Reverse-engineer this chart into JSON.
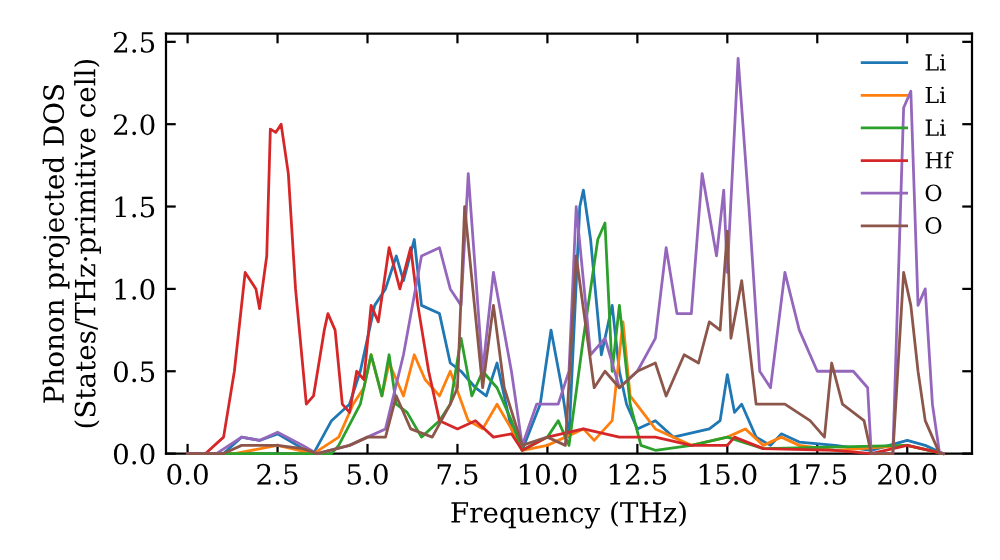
{
  "chart_data": {
    "type": "line",
    "xlabel": "Frequency (THz)",
    "ylabel": "Phonon projected DOS\n(States/THz·primitive cell)",
    "xlim": [
      -0.6,
      21.8
    ],
    "ylim": [
      0,
      2.55
    ],
    "xticks": [
      {
        "value": 0,
        "label": "0.0"
      },
      {
        "value": 2.5,
        "label": "2.5"
      },
      {
        "value": 5,
        "label": "5.0"
      },
      {
        "value": 7.5,
        "label": "7.5"
      },
      {
        "value": 10,
        "label": "10.0"
      },
      {
        "value": 12.5,
        "label": "12.5"
      },
      {
        "value": 15,
        "label": "15.0"
      },
      {
        "value": 17.5,
        "label": "17.5"
      },
      {
        "value": 20,
        "label": "20.0"
      }
    ],
    "yticks": [
      {
        "value": 0,
        "label": "0.0"
      },
      {
        "value": 0.5,
        "label": "0.5"
      },
      {
        "value": 1,
        "label": "1.0"
      },
      {
        "value": 1.5,
        "label": "1.5"
      },
      {
        "value": 2,
        "label": "2.0"
      },
      {
        "value": 2.5,
        "label": "2.5"
      }
    ],
    "grid": false,
    "legend": "top right",
    "marker": "none",
    "line_style": "solid",
    "series": [
      {
        "name": "Li",
        "color": "#1f77b4",
        "x": [
          0,
          1,
          1.5,
          2,
          2.5,
          3.2,
          3.5,
          4,
          4.5,
          4.8,
          5.2,
          5.5,
          5.8,
          6,
          6.3,
          6.5,
          7,
          7.3,
          7.6,
          8,
          8.3,
          8.6,
          9,
          9.3,
          9.8,
          10.1,
          10.4,
          10.6,
          10.9,
          11,
          11.2,
          11.5,
          11.8,
          12,
          12.2,
          12.5,
          13,
          13.5,
          14.5,
          14.8,
          15,
          15.2,
          15.4,
          15.8,
          16.2,
          16.5,
          17,
          18,
          19,
          20,
          20.5,
          21
        ],
        "values": [
          0,
          0,
          0.1,
          0.08,
          0.12,
          0.03,
          0,
          0.2,
          0.3,
          0.5,
          0.9,
          1.0,
          1.2,
          1.05,
          1.3,
          0.9,
          0.85,
          0.55,
          0.5,
          0.4,
          0.35,
          0.55,
          0.15,
          0.02,
          0.3,
          0.75,
          0.4,
          0.1,
          1.5,
          1.6,
          1.3,
          0.6,
          0.9,
          0.5,
          0.3,
          0.15,
          0.2,
          0.1,
          0.15,
          0.2,
          0.48,
          0.25,
          0.3,
          0.1,
          0.05,
          0.12,
          0.07,
          0.05,
          0.02,
          0.08,
          0.05,
          0
        ]
      },
      {
        "name": "Li",
        "color": "#ff7f0e",
        "x": [
          0,
          1.3,
          2.5,
          3.5,
          4.2,
          4.6,
          4.9,
          5.1,
          5.4,
          5.6,
          6,
          6.3,
          6.6,
          7,
          7.3,
          7.8,
          8.2,
          8.6,
          9,
          9.3,
          10,
          10.5,
          11,
          11.3,
          11.8,
          12.1,
          12.3,
          13,
          14,
          15,
          15.5,
          16,
          16.5,
          17,
          18,
          20,
          21
        ],
        "values": [
          0,
          0,
          0.05,
          0,
          0.1,
          0.3,
          0.4,
          0.6,
          0.35,
          0.55,
          0.35,
          0.6,
          0.45,
          0.35,
          0.5,
          0.2,
          0.15,
          0.3,
          0.15,
          0.02,
          0.05,
          0.1,
          0.15,
          0.08,
          0.2,
          0.8,
          0.35,
          0.15,
          0.05,
          0.1,
          0.15,
          0.05,
          0.1,
          0.05,
          0.02,
          0.05,
          0
        ]
      },
      {
        "name": "Li",
        "color": "#2ca02c",
        "x": [
          0,
          4,
          4.2,
          4.8,
          5.1,
          5.4,
          5.6,
          5.8,
          6.1,
          6.5,
          7,
          7.3,
          7.6,
          7.9,
          8.2,
          8.6,
          9,
          9.3,
          10,
          10.3,
          10.6,
          11,
          11.4,
          11.6,
          11.8,
          12,
          12.3,
          12.6,
          13,
          14,
          15,
          16,
          20,
          21
        ],
        "values": [
          0,
          0,
          0.05,
          0.3,
          0.6,
          0.35,
          0.6,
          0.3,
          0.25,
          0.1,
          0.2,
          0.3,
          0.7,
          0.35,
          0.5,
          0.4,
          0.2,
          0.02,
          0.1,
          0.2,
          0.05,
          0.7,
          1.3,
          1.4,
          0.5,
          0.9,
          0.3,
          0.05,
          0.02,
          0.05,
          0.1,
          0.03,
          0.05,
          0
        ]
      },
      {
        "name": "Hf",
        "color": "#d62728",
        "x": [
          0,
          0.5,
          1,
          1.3,
          1.6,
          1.9,
          2,
          2.2,
          2.3,
          2.45,
          2.6,
          2.8,
          3,
          3.3,
          3.5,
          3.8,
          3.9,
          4.1,
          4.3,
          4.5,
          4.7,
          4.9,
          5.1,
          5.3,
          5.6,
          5.9,
          6.2,
          6.4,
          6.7,
          7,
          7.5,
          8,
          8.5,
          9,
          9.3,
          10,
          11,
          12,
          13,
          14,
          15,
          15.2,
          16,
          18,
          19,
          20,
          21
        ],
        "values": [
          0,
          0,
          0.1,
          0.5,
          1.1,
          1.0,
          0.88,
          1.2,
          1.97,
          1.95,
          2.0,
          1.7,
          1.0,
          0.3,
          0.35,
          0.75,
          0.85,
          0.75,
          0.3,
          0.25,
          0.5,
          0.45,
          0.9,
          0.8,
          1.25,
          1.0,
          1.25,
          0.9,
          0.5,
          0.2,
          0.15,
          0.2,
          0.1,
          0.12,
          0.02,
          0.1,
          0.15,
          0.1,
          0.1,
          0.05,
          0.05,
          0.1,
          0.03,
          0.02,
          0,
          0.05,
          0
        ]
      },
      {
        "name": "O",
        "color": "#9467bd",
        "x": [
          0,
          0.8,
          1.5,
          2,
          2.5,
          3.2,
          3.6,
          4.5,
          5,
          5.5,
          6,
          6.5,
          7,
          7.3,
          7.6,
          7.8,
          8.2,
          8.5,
          9,
          9.3,
          9.7,
          10.3,
          10.6,
          10.8,
          11.2,
          11.6,
          12,
          12.5,
          13,
          13.3,
          13.6,
          14,
          14.3,
          14.5,
          14.7,
          14.9,
          15,
          15.3,
          15.6,
          15.9,
          16.2,
          16.6,
          17,
          17.5,
          18,
          18.5,
          18.9,
          19,
          19.6,
          19.9,
          20.1,
          20.3,
          20.5,
          20.7,
          20.9,
          21
        ],
        "values": [
          0,
          0,
          0.1,
          0.08,
          0.13,
          0.05,
          0,
          0.05,
          0.1,
          0.15,
          0.6,
          1.2,
          1.25,
          1.0,
          0.9,
          1.7,
          0.5,
          1.1,
          0.5,
          0.05,
          0.3,
          0.3,
          0.5,
          1.5,
          0.6,
          0.7,
          0.4,
          0.5,
          0.7,
          1.25,
          0.85,
          0.85,
          1.7,
          1.45,
          1.2,
          1.6,
          1.1,
          2.4,
          1.5,
          0.5,
          0.4,
          1.1,
          0.75,
          0.5,
          0.5,
          0.5,
          0.4,
          0,
          0,
          2.1,
          2.2,
          0.9,
          1.0,
          0.3,
          0,
          0
        ]
      },
      {
        "name": "O",
        "color": "#8c564b",
        "x": [
          0,
          1,
          1.5,
          2.5,
          3.2,
          3.6,
          4.5,
          5,
          5.5,
          5.8,
          6.2,
          6.8,
          7.3,
          7.5,
          7.7,
          8.2,
          8.5,
          8.8,
          9.3,
          10,
          10.5,
          10.8,
          11.3,
          11.6,
          12,
          12.5,
          13,
          13.3,
          13.8,
          14.2,
          14.5,
          14.8,
          15,
          15.1,
          15.4,
          15.8,
          16.2,
          16.6,
          17.3,
          17.7,
          17.9,
          18.2,
          18.8,
          19,
          19.6,
          19.9,
          20.1,
          20.3,
          20.5,
          20.9,
          21
        ],
        "values": [
          0,
          0,
          0.05,
          0.05,
          0.03,
          0,
          0.05,
          0.1,
          0.1,
          0.35,
          0.15,
          0.1,
          0.3,
          0.4,
          1.5,
          0.4,
          0.9,
          0.4,
          0.05,
          0.1,
          0.05,
          1.2,
          0.4,
          0.5,
          0.4,
          0.5,
          0.55,
          0.35,
          0.6,
          0.55,
          0.8,
          0.75,
          1.35,
          0.7,
          1.05,
          0.3,
          0.3,
          0.3,
          0.2,
          0.1,
          0.55,
          0.3,
          0.2,
          0,
          0,
          1.1,
          0.9,
          0.5,
          0.2,
          0,
          0
        ]
      }
    ]
  }
}
